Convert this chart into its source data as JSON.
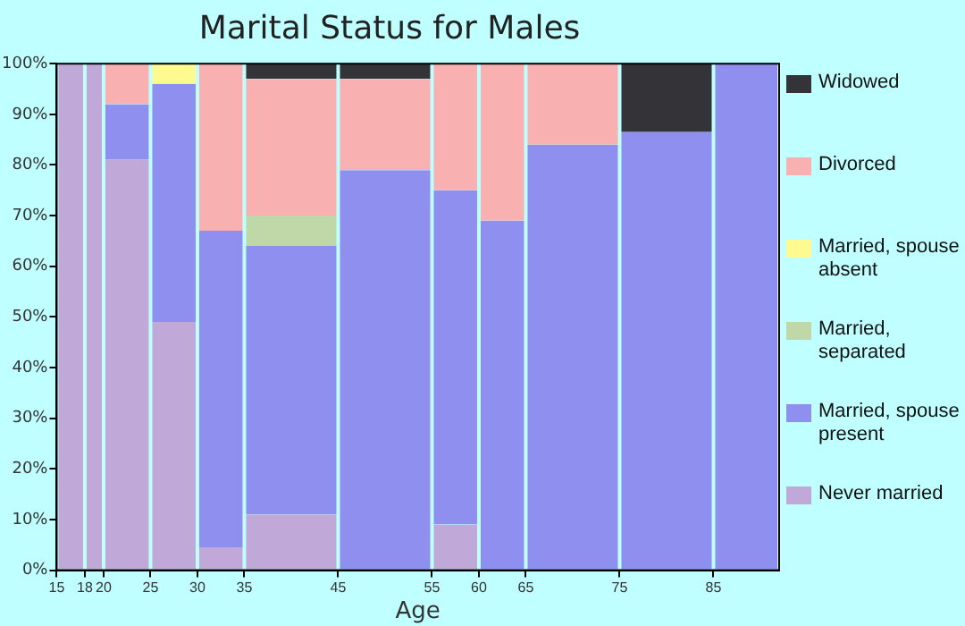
{
  "chart_data": {
    "type": "bar",
    "stacked": true,
    "title": "Marital Status for Males",
    "xlabel": "Age",
    "x": [
      16.5,
      19,
      22.5,
      27.5,
      32.5,
      40,
      50,
      57.5,
      62.5,
      70,
      80,
      88.5
    ],
    "xlim": [
      15,
      92
    ],
    "xticks": [
      15,
      18,
      20,
      25,
      30,
      35,
      45,
      55,
      60,
      65,
      75,
      85
    ],
    "ylim": [
      0,
      100
    ],
    "yticks": [
      {
        "value": 0,
        "label": "0%"
      },
      {
        "value": 10,
        "label": "10%"
      },
      {
        "value": 20,
        "label": "20%"
      },
      {
        "value": 30,
        "label": "30%"
      },
      {
        "value": 40,
        "label": "40%"
      },
      {
        "value": 50,
        "label": "50%"
      },
      {
        "value": 60,
        "label": "60%"
      },
      {
        "value": 70,
        "label": "70%"
      },
      {
        "value": 80,
        "label": "80%"
      },
      {
        "value": 90,
        "label": "90%"
      },
      {
        "value": 100,
        "label": "100%"
      }
    ],
    "grid": false,
    "legend": "right",
    "series": [
      {
        "name": "Never married",
        "color": "#c0a8d8",
        "values": [
          100,
          100,
          81,
          49,
          4.5,
          11,
          null,
          9,
          null,
          null,
          null,
          null
        ]
      },
      {
        "name": "Married, spouse present",
        "color": "#8f8ff0",
        "values": [
          null,
          null,
          11,
          47,
          62.5,
          53,
          79,
          66,
          69,
          84,
          86.5,
          100
        ]
      },
      {
        "name": "Married, separated",
        "color": "#c0d8a8",
        "values": [
          null,
          null,
          null,
          null,
          null,
          6,
          null,
          null,
          null,
          null,
          null,
          null
        ]
      },
      {
        "name": "Married, spouse absent",
        "color": "#fffa90",
        "values": [
          null,
          null,
          null,
          4,
          null,
          null,
          null,
          null,
          null,
          null,
          null,
          null
        ]
      },
      {
        "name": "Divorced",
        "color": "#f8b0b0",
        "values": [
          null,
          null,
          8,
          null,
          33,
          27,
          18,
          25,
          31,
          16,
          null,
          null
        ]
      },
      {
        "name": "Widowed",
        "color": "#333338",
        "values": [
          null,
          null,
          null,
          null,
          null,
          3,
          3,
          null,
          null,
          null,
          13.5,
          null
        ]
      }
    ]
  }
}
